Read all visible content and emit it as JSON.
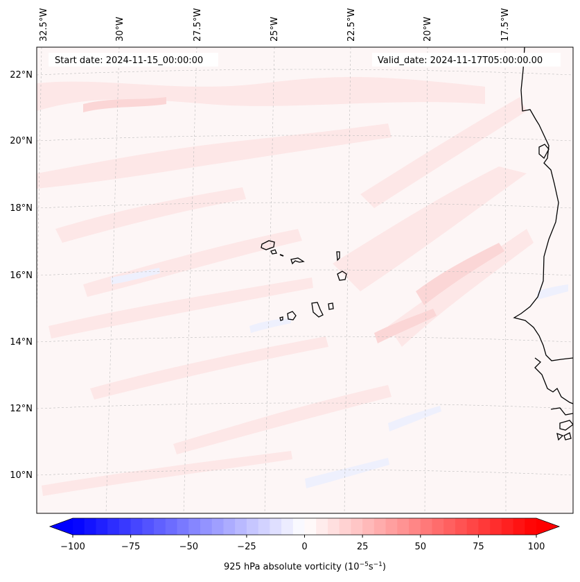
{
  "map": {
    "start_label": "Start date: 2024-11-15_00:00:00",
    "valid_label": "Valid_date: 2024-11-17T05:00:00.00",
    "lon_labels": [
      "32.5°W",
      "30°W",
      "27.5°W",
      "25°W",
      "22.5°W",
      "20°W",
      "17.5°W"
    ],
    "lat_labels": [
      "22°N",
      "20°N",
      "18°N",
      "16°N",
      "14°N",
      "12°N",
      "10°N"
    ],
    "field_colors": {
      "background": "#fdf6f6",
      "positive_light": "#fde6e6",
      "positive_medium": "#fbd6d6",
      "negative_light": "#eef0fd"
    },
    "coastline_color": "#000000"
  },
  "colorbar": {
    "title": "925 hPa absolute vorticity (10",
    "title_exp1": "−5",
    "title_mid": "s",
    "title_exp2": "−1",
    "title_end": ")",
    "tick_labels": [
      "−100",
      "−75",
      "−50",
      "−25",
      "0",
      "25",
      "50",
      "75",
      "100"
    ],
    "colormap": {
      "min_color": "#0000ff",
      "mid_color": "#ffffff",
      "max_color": "#ff0000"
    },
    "range": [
      -100,
      100
    ],
    "levels": 40
  }
}
